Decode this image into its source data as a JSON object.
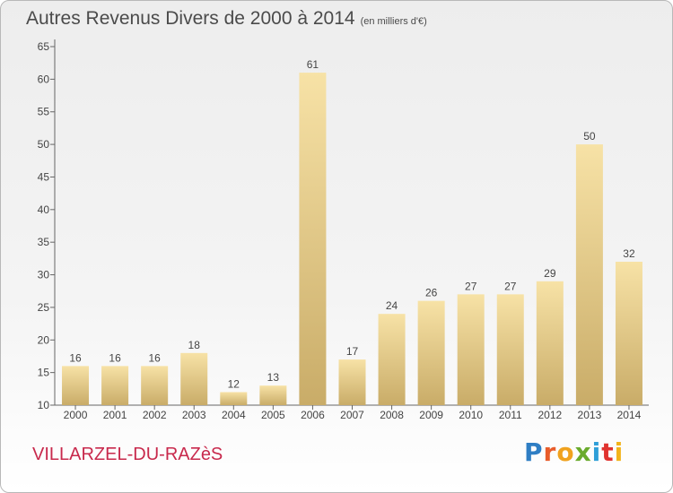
{
  "chart_data": {
    "type": "bar",
    "title": "Autres Revenus Divers de 2000 à 2014",
    "subtitle": "(en milliers d'€)",
    "categories": [
      "2000",
      "2001",
      "2002",
      "2003",
      "2004",
      "2005",
      "2006",
      "2007",
      "2008",
      "2009",
      "2010",
      "2011",
      "2012",
      "2013",
      "2014"
    ],
    "values": [
      16,
      16,
      16,
      18,
      12,
      13,
      61,
      17,
      24,
      26,
      27,
      27,
      29,
      50,
      32
    ],
    "ylim": [
      10,
      65
    ],
    "yticks": [
      10,
      15,
      20,
      25,
      30,
      35,
      40,
      45,
      50,
      55,
      60,
      65
    ],
    "grid": false,
    "bar_color_light": "#f7e2a6",
    "bar_color_dark": "#c9ac68"
  },
  "footer": {
    "town": "VILLARZEL-DU-RAZèS",
    "logo_letters": [
      "P",
      "r",
      "o",
      "x",
      "i",
      "t",
      "i"
    ]
  }
}
